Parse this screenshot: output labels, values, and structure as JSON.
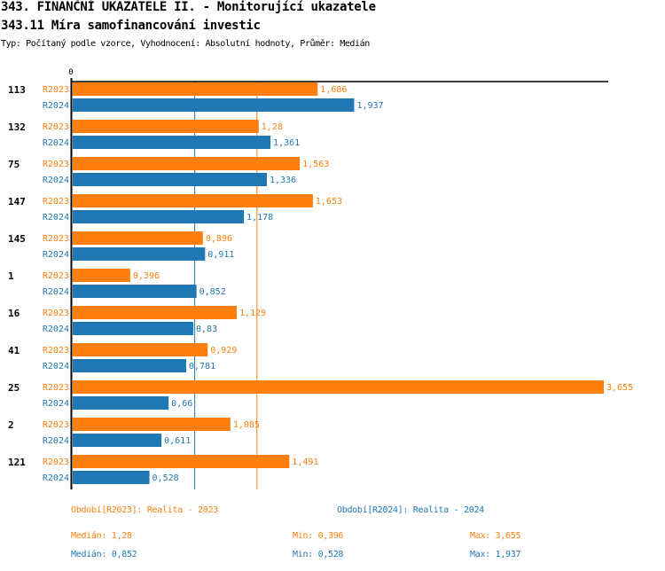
{
  "header": {
    "title": "343. FINANČNÍ UKAZATELE II. - Monitorující ukazatele",
    "subtitle": "343.11 Míra samofinancování investic",
    "info": "Typ: Počítaný podle vzorce, Vyhodnocení: Absolutní hodnoty, Průměr: Medián"
  },
  "colors": {
    "R2023": "#ff7f0e",
    "R2024": "#1f77b4",
    "axis": "#000000"
  },
  "chart_data": {
    "type": "bar",
    "orientation": "horizontal",
    "title": "343.11 Míra samofinancování investic",
    "xlabel": "",
    "ylabel": "",
    "xlim": [
      0,
      3.655
    ],
    "x_tick_labels": [
      "0"
    ],
    "grid": false,
    "categories": [
      "113",
      "132",
      "75",
      "147",
      "145",
      "1",
      "16",
      "41",
      "25",
      "2",
      "121"
    ],
    "series": [
      {
        "name": "R2023",
        "values": [
          1.686,
          1.28,
          1.563,
          1.653,
          0.896,
          0.396,
          1.129,
          0.929,
          3.655,
          1.085,
          1.491
        ],
        "labels": [
          "1,686",
          "1,28",
          "1,563",
          "1,653",
          "0,896",
          "0,396",
          "1,129",
          "0,929",
          "3,655",
          "1,085",
          "1,491"
        ]
      },
      {
        "name": "R2024",
        "values": [
          1.937,
          1.361,
          1.336,
          1.178,
          0.911,
          0.852,
          0.83,
          0.781,
          0.66,
          0.611,
          0.528
        ],
        "labels": [
          "1,937",
          "1,361",
          "1,336",
          "1,178",
          "0,911",
          "0,852",
          "0,83",
          "0,781",
          "0,66",
          "0,611",
          "0,528"
        ]
      }
    ],
    "reference_lines": [
      {
        "series": "R2023",
        "type": "median",
        "value": 1.28
      },
      {
        "series": "R2024",
        "type": "median",
        "value": 0.852
      }
    ]
  },
  "legend": {
    "r2023": "Období[R2023]: Realita - 2023",
    "r2024": "Období[R2024]: Realita - 2024"
  },
  "stats": {
    "r2023": {
      "median": "Medián: 1,28",
      "min": "Min: 0,396",
      "max": "Max: 3,655"
    },
    "r2024": {
      "median": "Medián: 0,852",
      "min": "Min: 0,528",
      "max": "Max: 1,937"
    }
  }
}
